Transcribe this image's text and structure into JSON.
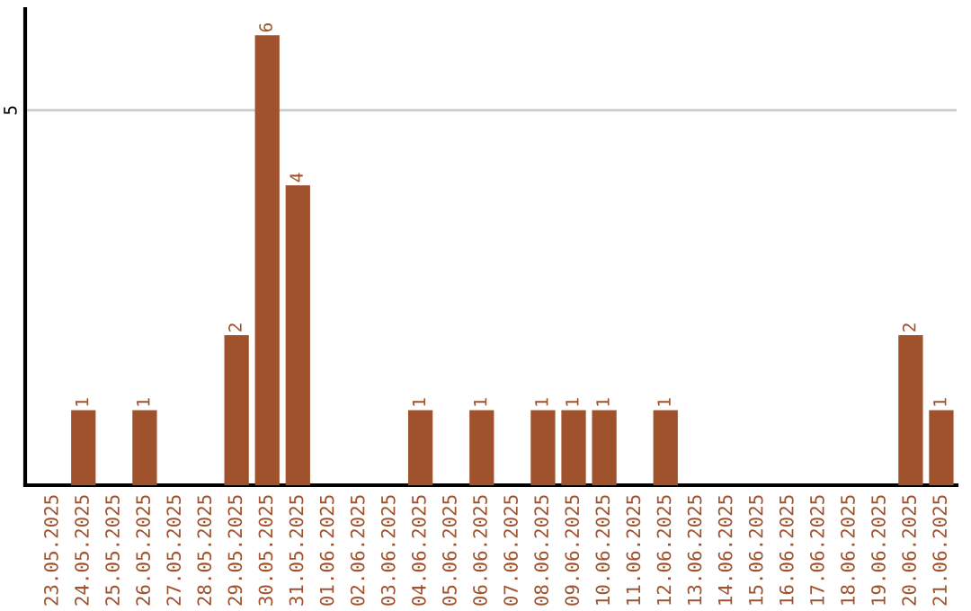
{
  "chart_data": {
    "type": "bar",
    "categories": [
      "23.05.2025",
      "24.05.2025",
      "25.05.2025",
      "26.05.2025",
      "27.05.2025",
      "28.05.2025",
      "29.05.2025",
      "30.05.2025",
      "31.05.2025",
      "01.06.2025",
      "02.06.2025",
      "03.06.2025",
      "04.06.2025",
      "05.06.2025",
      "06.06.2025",
      "07.06.2025",
      "08.06.2025",
      "09.06.2025",
      "10.06.2025",
      "11.06.2025",
      "12.06.2025",
      "13.06.2025",
      "14.06.2025",
      "15.06.2025",
      "16.06.2025",
      "17.06.2025",
      "18.06.2025",
      "19.06.2025",
      "20.06.2025",
      "21.06.2025"
    ],
    "values": [
      0,
      1,
      0,
      1,
      0,
      0,
      2,
      6,
      4,
      0,
      0,
      0,
      1,
      0,
      1,
      0,
      1,
      1,
      1,
      0,
      1,
      0,
      0,
      0,
      0,
      0,
      0,
      0,
      2,
      1
    ],
    "value_labels": [
      null,
      "1",
      null,
      "1",
      null,
      null,
      "2",
      "6",
      "4",
      null,
      null,
      null,
      "1",
      null,
      "1",
      null,
      "1",
      "1",
      "1",
      null,
      "1",
      null,
      null,
      null,
      null,
      null,
      null,
      null,
      "2",
      "1"
    ],
    "color": "#a0522d",
    "ylim": [
      0,
      6.35
    ],
    "yticks": [
      5
    ],
    "grid": "y"
  }
}
